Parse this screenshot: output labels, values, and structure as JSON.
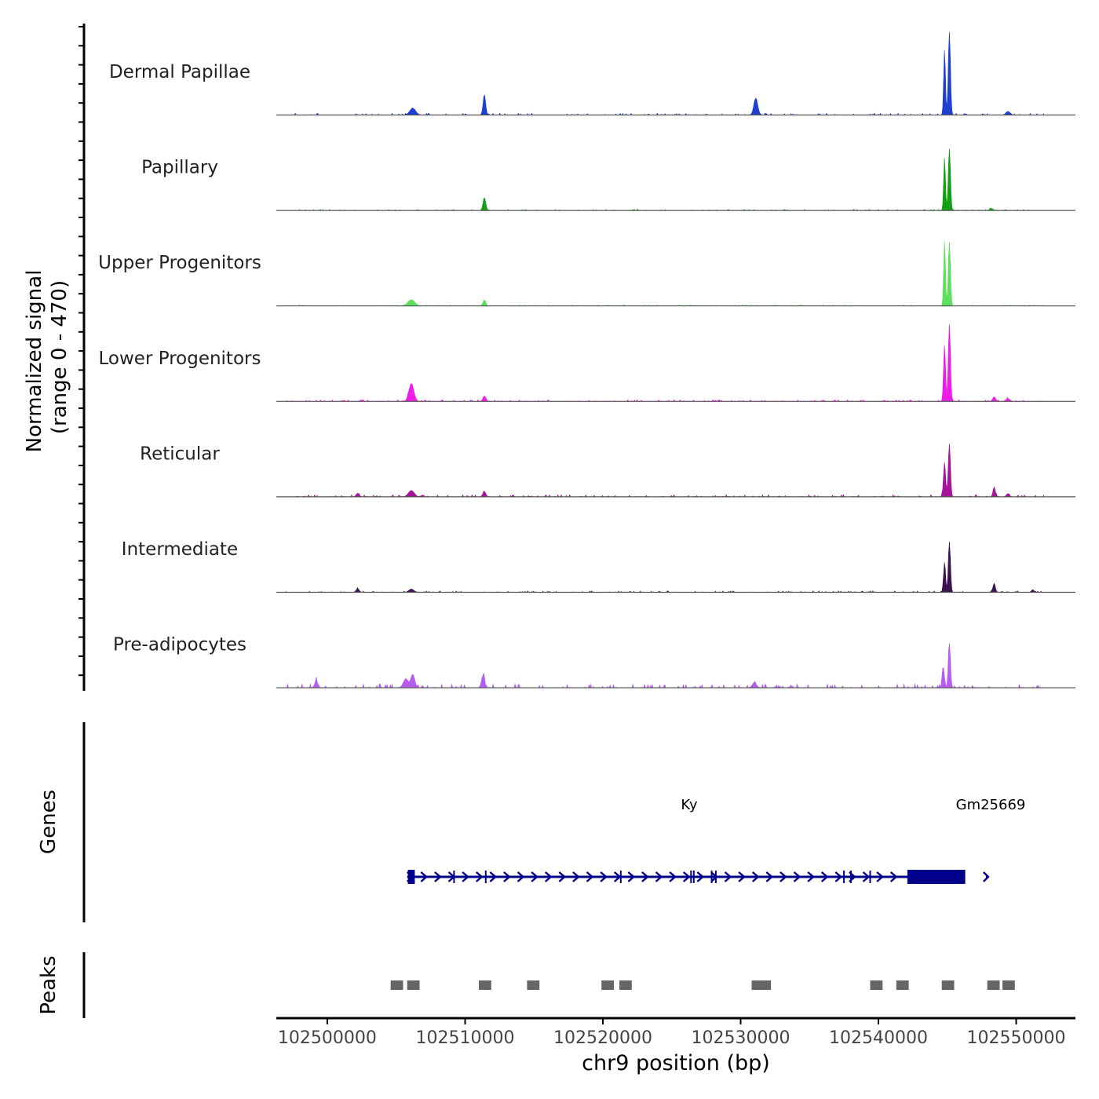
{
  "chart_data": [
    {
      "type": "area",
      "title": "",
      "ylabel_line1": "Normalized signal",
      "ylabel_line2": "(range 0 - 470)",
      "ylim": [
        0,
        470
      ],
      "xlim": [
        102496300,
        102554300
      ],
      "baseline_color": "#555555",
      "series": [
        {
          "name": "Dermal Papillae",
          "color": "#1e3fd0",
          "peaks": [
            [
              102506200,
              38,
              300
            ],
            [
              102511400,
              115,
              130
            ],
            [
              102531100,
              95,
              200
            ],
            [
              102544800,
              370,
              90
            ],
            [
              102545150,
              470,
              110
            ],
            [
              102549400,
              20,
              200
            ]
          ],
          "noise": 10
        },
        {
          "name": "Papillary",
          "color": "#14a014",
          "peaks": [
            [
              102511400,
              72,
              140
            ],
            [
              102544800,
              300,
              90
            ],
            [
              102545150,
              350,
              110
            ],
            [
              102548200,
              10,
              200
            ]
          ],
          "noise": 6
        },
        {
          "name": "Upper Progenitors",
          "color": "#5ee05e",
          "peaks": [
            [
              102506100,
              35,
              350
            ],
            [
              102511400,
              30,
              150
            ],
            [
              102544800,
              370,
              90
            ],
            [
              102545150,
              360,
              110
            ]
          ],
          "noise": 6
        },
        {
          "name": "Lower Progenitors",
          "color": "#ee1ee6",
          "peaks": [
            [
              102506100,
              100,
              250
            ],
            [
              102511400,
              30,
              150
            ],
            [
              102544800,
              320,
              100
            ],
            [
              102545150,
              430,
              110
            ],
            [
              102548400,
              25,
              150
            ],
            [
              102549400,
              15,
              200
            ]
          ],
          "noise": 9
        },
        {
          "name": "Reticular",
          "color": "#a3169a",
          "peaks": [
            [
              102502200,
              20,
              150
            ],
            [
              102506100,
              35,
              300
            ],
            [
              102511400,
              28,
              150
            ],
            [
              102544800,
              190,
              110
            ],
            [
              102545150,
              300,
              110
            ],
            [
              102548400,
              55,
              120
            ],
            [
              102549400,
              18,
              150
            ]
          ],
          "noise": 12
        },
        {
          "name": "Intermediate",
          "color": "#3a1250",
          "peaks": [
            [
              102502200,
              20,
              150
            ],
            [
              102506100,
              18,
              250
            ],
            [
              102544800,
              170,
              100
            ],
            [
              102545150,
              285,
              110
            ],
            [
              102548400,
              50,
              120
            ],
            [
              102551200,
              15,
              120
            ]
          ],
          "noise": 8
        },
        {
          "name": "Pre-adipocytes",
          "color": "#b65cf0",
          "peaks": [
            [
              102499200,
              40,
              150
            ],
            [
              102505700,
              50,
              250
            ],
            [
              102506200,
              75,
              200
            ],
            [
              102511300,
              70,
              150
            ],
            [
              102531000,
              30,
              200
            ],
            [
              102544700,
              120,
              110
            ],
            [
              102545150,
              250,
              110
            ]
          ],
          "noise": 22
        }
      ],
      "x": {
        "label": "chr9 position (bp)",
        "ticks": [
          102500000,
          102510000,
          102520000,
          102530000,
          102540000,
          102550000
        ]
      }
    },
    {
      "type": "gene-track",
      "ylabel": "Genes",
      "genes": [
        {
          "name": "Ky",
          "strand": "+",
          "start": 102505800,
          "end": 102546300,
          "thick_blocks": [
            [
              102505850,
              102506350
            ],
            [
              102542100,
              102546300
            ]
          ],
          "exons": [
            102509200,
            102511500,
            102521300,
            102526400,
            102526600,
            102527900,
            102528200,
            102537500,
            102538000,
            102539400
          ]
        },
        {
          "name": "Gm25669",
          "strand": "+",
          "start": 102547800,
          "end": 102548000,
          "thick_blocks": [],
          "exons": []
        }
      ],
      "color": "#00008b"
    },
    {
      "type": "peak-track",
      "ylabel": "Peaks",
      "color": "#666666",
      "peaks": [
        [
          102504600,
          102505500
        ],
        [
          102505800,
          102506700
        ],
        [
          102511000,
          102511900
        ],
        [
          102514500,
          102515400
        ],
        [
          102519900,
          102520800
        ],
        [
          102521200,
          102522100
        ],
        [
          102530800,
          102532200
        ],
        [
          102539400,
          102540300
        ],
        [
          102541300,
          102542200
        ],
        [
          102544600,
          102545500
        ],
        [
          102547900,
          102548800
        ],
        [
          102549000,
          102549900
        ]
      ]
    }
  ]
}
